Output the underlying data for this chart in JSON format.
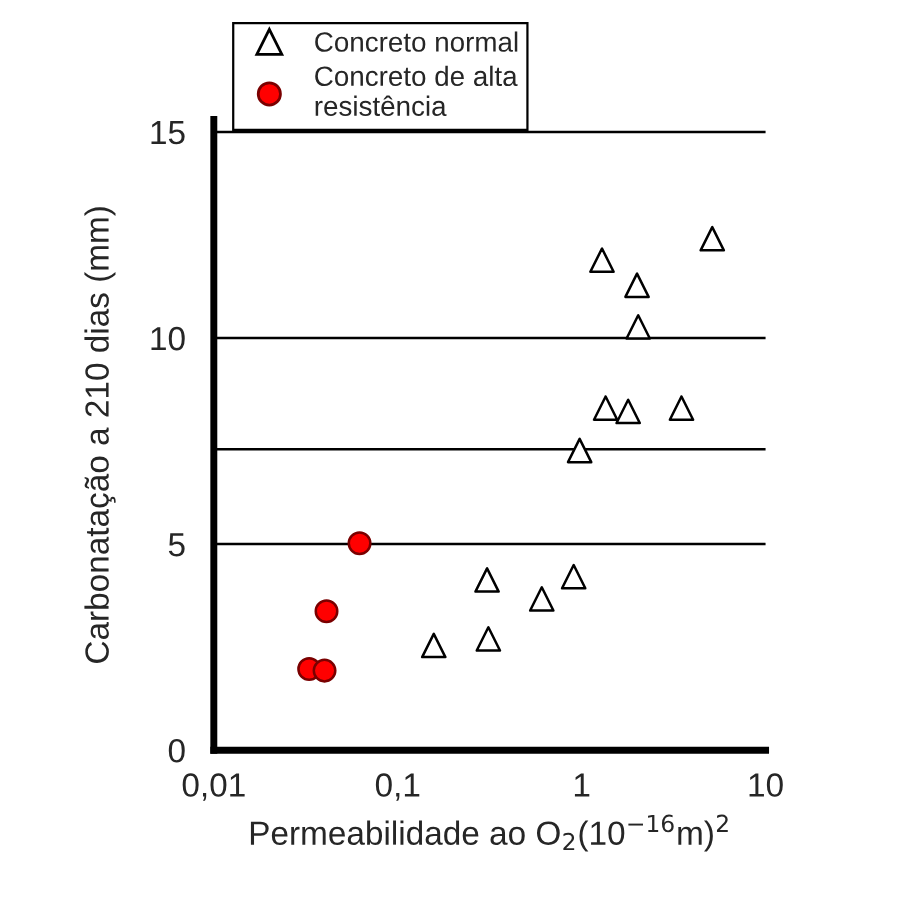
{
  "chart_data": {
    "type": "scatter",
    "xlabel": "Permeabilidade ao O$_{2}$(10$^{−16}$m)$^{2}$",
    "ylabel": "Carbonatação a 210 dias (mm)",
    "log": "x",
    "xlim": [
      0.01,
      10
    ],
    "xticks": [
      {
        "value": 0.01,
        "label": "0,01"
      },
      {
        "value": 0.1,
        "label": "0,1"
      },
      1,
      10
    ],
    "ylim": [
      0,
      15.3
    ],
    "yticks": [
      0,
      5,
      10,
      15
    ],
    "grid": false,
    "legend": "top left",
    "ref_lines": [
      {
        "axis": "y",
        "value": 5,
        "color": "#000000"
      },
      {
        "axis": "y",
        "value": 7.3,
        "color": "#000000"
      },
      {
        "axis": "y",
        "value": 10,
        "color": "#000000"
      },
      {
        "axis": "y",
        "value": 15,
        "color": "#000000"
      }
    ],
    "series": [
      {
        "name": "Concreto normal",
        "color": "#000000",
        "marker": "triangle",
        "x": [
          0.157,
          0.306,
          0.311,
          0.607,
          0.905,
          0.975,
          1.29,
          1.35,
          1.79,
          2.0,
          2.03,
          3.49,
          5.13
        ],
        "values": [
          2.54,
          4.13,
          2.7,
          3.67,
          4.21,
          7.27,
          11.89,
          8.3,
          8.22,
          11.28,
          10.27,
          8.3,
          12.41
        ]
      },
      {
        "name": "Concreto de alta\nresistência",
        "color": "#ff0000",
        "marker": "circle",
        "x": [
          0.033,
          0.04,
          0.041,
          0.062
        ],
        "values": [
          1.97,
          1.93,
          3.37,
          5.02
        ]
      }
    ]
  }
}
